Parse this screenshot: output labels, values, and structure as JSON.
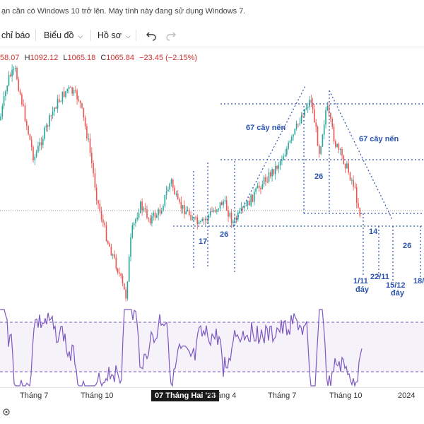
{
  "notice": {
    "text": "ạn cần có Windows 10 trở lên. Máy tính này đang sử dụng Windows 7."
  },
  "toolbar": {
    "indicators_label": "chỉ báo",
    "chart_type_label": "Biểu đồ",
    "profile_label": "Hồ sơ"
  },
  "ohlc": {
    "o_value": "58.07",
    "h_label": "H",
    "h_value": "1092.12",
    "l_label": "L",
    "l_value": "1065.18",
    "c_label": "C",
    "c_value": "1065.84",
    "change": "−23.45 (−2.15%)"
  },
  "annotations": {
    "candles_left": "67 cây nến",
    "candles_right": "67 cây nến",
    "n17": "17",
    "n26a": "26",
    "n26b": "26",
    "n14": "14",
    "n26c": "26",
    "d_1_11": "1/11",
    "d_22_11": "22/11",
    "d_15_12": "15/12",
    "d_18": "18/",
    "day1": "đáy",
    "day2": "đáy"
  },
  "time_axis": {
    "t1": "Tháng 7",
    "t2": "Tháng 10",
    "t3": "07 Tháng Hai '23",
    "t4": "Tháng 4",
    "t5": "Tháng 7",
    "t6": "Tháng 10",
    "t7": "2024"
  },
  "colors": {
    "up": "#26a69a",
    "down": "#ef5350",
    "rsi": "#7e57c2",
    "annotation": "#2a53b0"
  },
  "icons": {
    "undo": "undo-icon",
    "redo": "redo-icon"
  }
}
